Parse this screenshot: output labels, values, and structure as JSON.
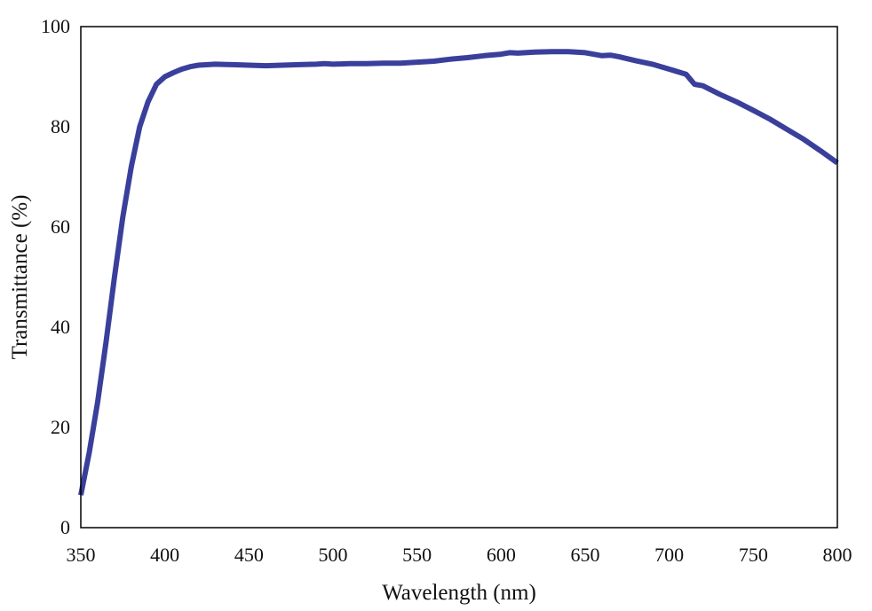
{
  "chart_data": {
    "type": "line",
    "title": "",
    "xlabel": "Wavelength (nm)",
    "ylabel": "Transmittance (%)",
    "xlim": [
      350,
      800
    ],
    "ylim": [
      0,
      100
    ],
    "xticks": [
      350,
      400,
      450,
      500,
      550,
      600,
      650,
      700,
      750,
      800
    ],
    "yticks": [
      0,
      20,
      40,
      60,
      80,
      100
    ],
    "grid": false,
    "legend": "none",
    "series": [
      {
        "color": "#3a3f9c",
        "x": [
          350,
          355,
          360,
          365,
          370,
          375,
          380,
          385,
          390,
          395,
          400,
          405,
          410,
          415,
          420,
          430,
          440,
          450,
          460,
          470,
          480,
          490,
          495,
          500,
          510,
          520,
          530,
          540,
          550,
          560,
          570,
          580,
          590,
          600,
          605,
          610,
          620,
          630,
          640,
          650,
          660,
          665,
          670,
          680,
          690,
          700,
          710,
          715,
          720,
          730,
          740,
          750,
          760,
          770,
          780,
          790,
          800
        ],
        "y": [
          6.5,
          15,
          25,
          37,
          50,
          62,
          72,
          80,
          85,
          88.5,
          90,
          90.8,
          91.5,
          92,
          92.3,
          92.5,
          92.4,
          92.3,
          92.2,
          92.3,
          92.4,
          92.5,
          92.6,
          92.5,
          92.6,
          92.6,
          92.7,
          92.7,
          92.9,
          93.1,
          93.5,
          93.8,
          94.2,
          94.5,
          94.8,
          94.7,
          94.9,
          95,
          95,
          94.8,
          94.2,
          94.3,
          94,
          93.2,
          92.5,
          91.5,
          90.5,
          88.5,
          88.2,
          86.5,
          85,
          83.3,
          81.5,
          79.5,
          77.5,
          75.2,
          72.8
        ]
      }
    ]
  }
}
